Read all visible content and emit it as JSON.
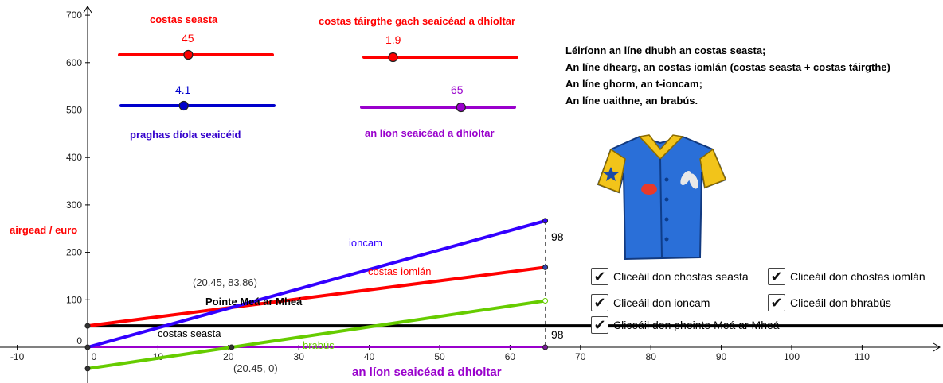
{
  "axes": {
    "x_ticks": [
      "-10",
      "0",
      "10",
      "20",
      "30",
      "40",
      "50",
      "60",
      "70",
      "80",
      "90",
      "100",
      "110"
    ],
    "y_ticks": [
      "700",
      "600",
      "500",
      "400",
      "300",
      "200",
      "100",
      "0"
    ],
    "ylabel": "airgead / euro",
    "xlabel": "an líon seaicéad a dhíoltar"
  },
  "sliders": {
    "fixed_cost": {
      "label": "costas seasta",
      "value": "45",
      "color": "#ff0000"
    },
    "unit_cost": {
      "label": "costas táirgthe gach seaicéad a dhíoltar",
      "value": "1.9",
      "color": "#ff0000"
    },
    "price": {
      "label": "praghas díola seaicéid",
      "value": "4.1",
      "color": "#0000cc"
    },
    "quantity": {
      "label": "an líon seaicéad a dhíoltar",
      "value": "65",
      "color": "#9900cc"
    }
  },
  "info": [
    "Léiríonn an líne dhubh an costas seasta;",
    "An líne dhearg, an costas iomlán (costas seasta + costas táirgthe)",
    "An líne ghorm, an t-ioncam;",
    "An líne uaithne, an brabús."
  ],
  "graph_labels": {
    "revenue": "ioncam",
    "total_cost": "costas iomlán",
    "fixed_cost": "costas seasta",
    "profit": "brabús",
    "break_even": "Pointe Meá ar Mheá",
    "point_upper": "(20.45, 83.86)",
    "point_lower": "(20.45, 0)",
    "gap_top": "98",
    "gap_bottom": "98"
  },
  "checkboxes": [
    {
      "label": "Cliceáil don chostas seasta",
      "checked": true
    },
    {
      "label": "Cliceáil don chostas iomlán",
      "checked": true
    },
    {
      "label": "Cliceáil don ioncam",
      "checked": true
    },
    {
      "label": "Cliceáil don bhrabús",
      "checked": true
    },
    {
      "label": "Cliceáil don phointe Meá ar Mheá",
      "checked": true
    }
  ],
  "icons": {
    "shirt": "shirt-icon",
    "check": "checkmark-icon"
  },
  "chart_data": {
    "type": "line",
    "xlabel": "an líon seaicéad a dhíoltar",
    "ylabel": "airgead / euro",
    "xlim": [
      -12,
      122
    ],
    "ylim": [
      -30,
      715
    ],
    "series": [
      {
        "name": "ioncam",
        "color": "#3300ff",
        "x": [
          0,
          65
        ],
        "y": [
          0,
          266.5
        ]
      },
      {
        "name": "costas iomlán",
        "color": "#ff0000",
        "x": [
          0,
          65
        ],
        "y": [
          45,
          168.5
        ]
      },
      {
        "name": "costas seasta",
        "color": "#000000",
        "x": [
          0,
          122
        ],
        "y": [
          45,
          45
        ]
      },
      {
        "name": "brabús",
        "color": "#66cc00",
        "x": [
          0,
          65
        ],
        "y": [
          -45,
          98
        ]
      }
    ],
    "quantity_line": {
      "color": "#9900cc",
      "x": [
        0,
        65
      ],
      "y": [
        0,
        0
      ]
    },
    "break_even": {
      "x": 20.45,
      "y": 83.86
    },
    "markers": [
      {
        "x": 0,
        "y": 0
      },
      {
        "x": 0,
        "y": 45
      },
      {
        "x": 0,
        "y": -45
      },
      {
        "x": 20.45,
        "y": 0
      },
      {
        "x": 65,
        "y": 266.5
      },
      {
        "x": 65,
        "y": 168.5
      },
      {
        "x": 65,
        "y": 98
      },
      {
        "x": 65,
        "y": 0
      }
    ]
  }
}
